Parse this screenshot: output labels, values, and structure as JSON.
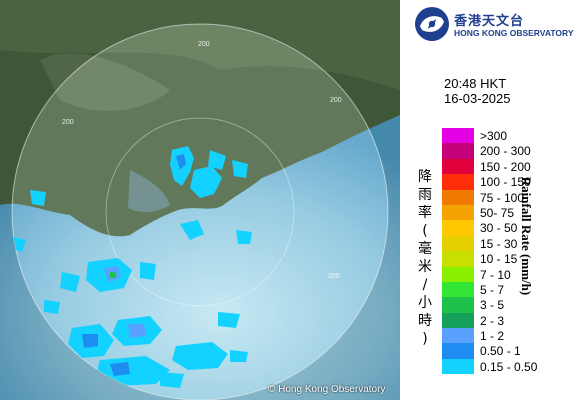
{
  "logo": {
    "chinese_name": "香港天文台",
    "english_name": "HONG KONG OBSERVATORY"
  },
  "map": {
    "copyright": "© Hong Kong Observatory",
    "range_labels": [
      "200",
      "200",
      "200",
      "200"
    ]
  },
  "timestamp": {
    "time": "20:48 HKT",
    "date": "16-03-2025"
  },
  "legend": {
    "title_chinese": "降雨率(毫米/小時)",
    "title_english": "Rainfall Rate (mm/h)",
    "items": [
      {
        "label": ">300",
        "color": "#e400e4"
      },
      {
        "label": "200 - 300",
        "color": "#c4007a"
      },
      {
        "label": "150 - 200",
        "color": "#e0003c"
      },
      {
        "label": "100 - 150",
        "color": "#ff2d0a"
      },
      {
        "label": "75 - 100",
        "color": "#f07a00"
      },
      {
        "label": "50- 75",
        "color": "#f5a300"
      },
      {
        "label": "30 - 50",
        "color": "#ffc800"
      },
      {
        "label": "15 - 30",
        "color": "#e6cf00"
      },
      {
        "label": "10 - 15",
        "color": "#c8e000"
      },
      {
        "label": "7 - 10",
        "color": "#8af000"
      },
      {
        "label": "5 - 7",
        "color": "#33e633"
      },
      {
        "label": "3 - 5",
        "color": "#1ec24a"
      },
      {
        "label": "2 - 3",
        "color": "#15a05a"
      },
      {
        "label": "1 - 2",
        "color": "#5aa0ff"
      },
      {
        "label": "0.50 - 1",
        "color": "#1e8cf0"
      },
      {
        "label": "0.15 - 0.50",
        "color": "#14d2ff"
      }
    ]
  }
}
